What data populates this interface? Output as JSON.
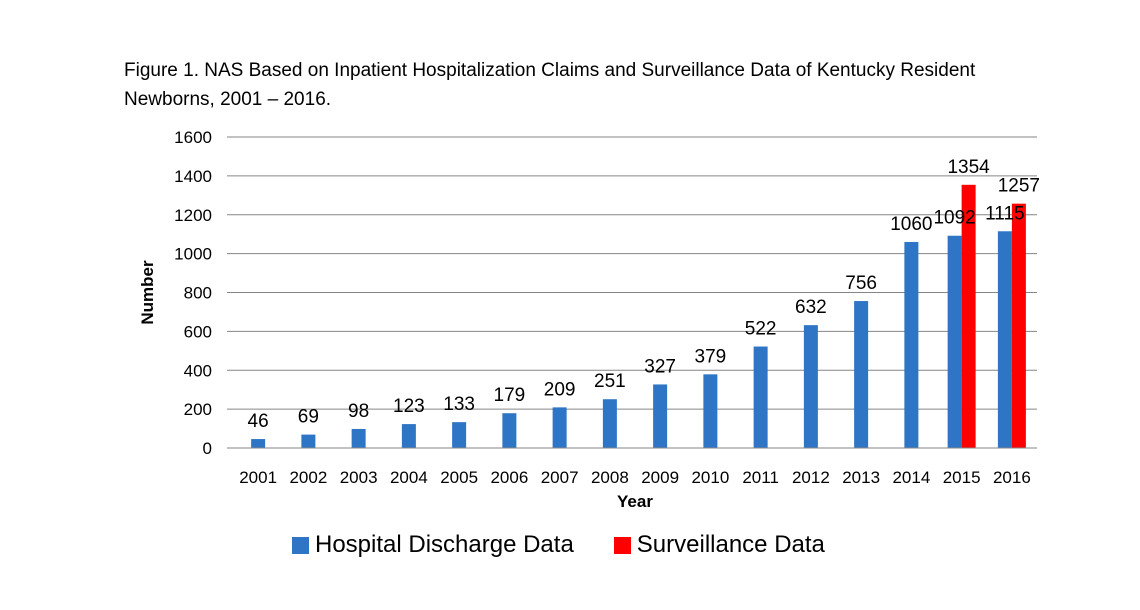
{
  "figure": {
    "title_line1": "Figure 1. NAS Based on Inpatient Hospitalization Claims and Surveillance Data of Kentucky Resident",
    "title_line2": "Newborns, 2001 – 2016."
  },
  "chart_data": {
    "type": "bar",
    "categories": [
      "2001",
      "2002",
      "2003",
      "2004",
      "2005",
      "2006",
      "2007",
      "2008",
      "2009",
      "2010",
      "2011",
      "2012",
      "2013",
      "2014",
      "2015",
      "2016"
    ],
    "series": [
      {
        "name": "Hospital Discharge Data",
        "color": "#2e75c6",
        "values": [
          46,
          69,
          98,
          123,
          133,
          179,
          209,
          251,
          327,
          379,
          522,
          632,
          756,
          1060,
          1092,
          1115
        ]
      },
      {
        "name": "Surveillance Data",
        "color": "#ff0000",
        "values": [
          null,
          null,
          null,
          null,
          null,
          null,
          null,
          null,
          null,
          null,
          null,
          null,
          null,
          null,
          1354,
          1257
        ]
      }
    ],
    "xlabel": "Year",
    "ylabel": "Number",
    "ylim": [
      0,
      1600
    ],
    "yticks": [
      0,
      200,
      400,
      600,
      800,
      1000,
      1200,
      1400,
      1600
    ],
    "grid": true,
    "legend_position": "bottom"
  }
}
